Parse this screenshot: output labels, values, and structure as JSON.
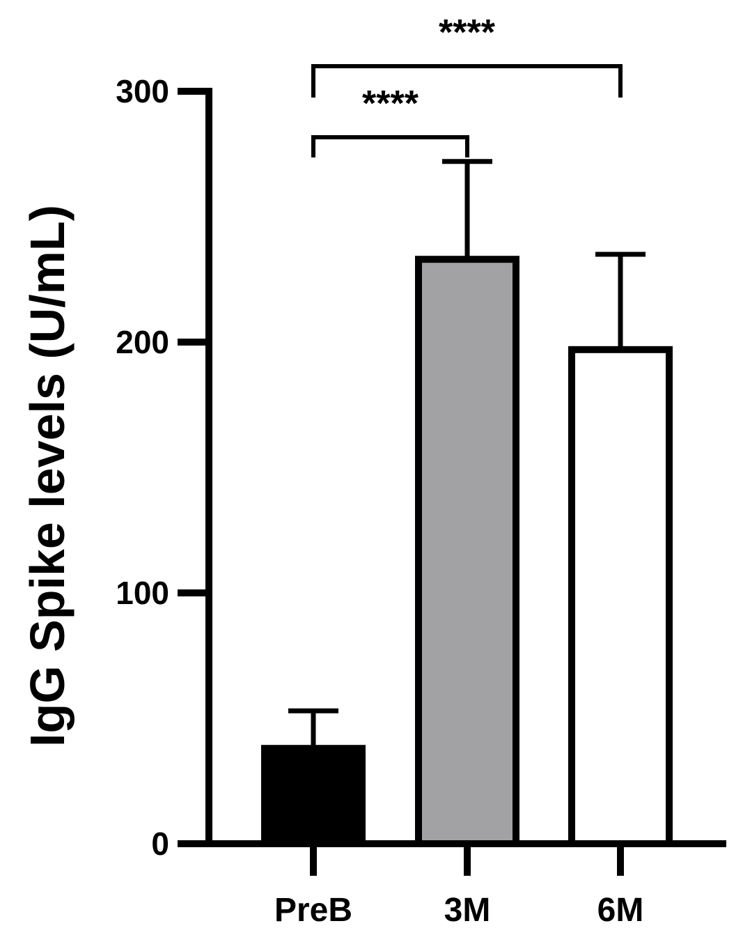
{
  "chart_data": {
    "type": "bar",
    "title": "",
    "xlabel": "",
    "ylabel": "IgG Spike levels (U/mL)",
    "ylim": [
      0,
      300
    ],
    "yticks": [
      0,
      100,
      200,
      300
    ],
    "ytick_labels": [
      "0",
      "100",
      "200",
      "300"
    ],
    "categories": [
      "PreB",
      "3M",
      "6M"
    ],
    "values": [
      38,
      233,
      197
    ],
    "errors": [
      15,
      39,
      38
    ],
    "bar_fills": [
      "#000000",
      "#a2a2a5",
      "#ffffff"
    ],
    "bar_edge_color": "#000000",
    "grid": false,
    "legend": "none",
    "annotations": [
      {
        "from": "PreB",
        "to": "3M",
        "label": "****"
      },
      {
        "from": "PreB",
        "to": "6M",
        "label": "****"
      }
    ]
  }
}
